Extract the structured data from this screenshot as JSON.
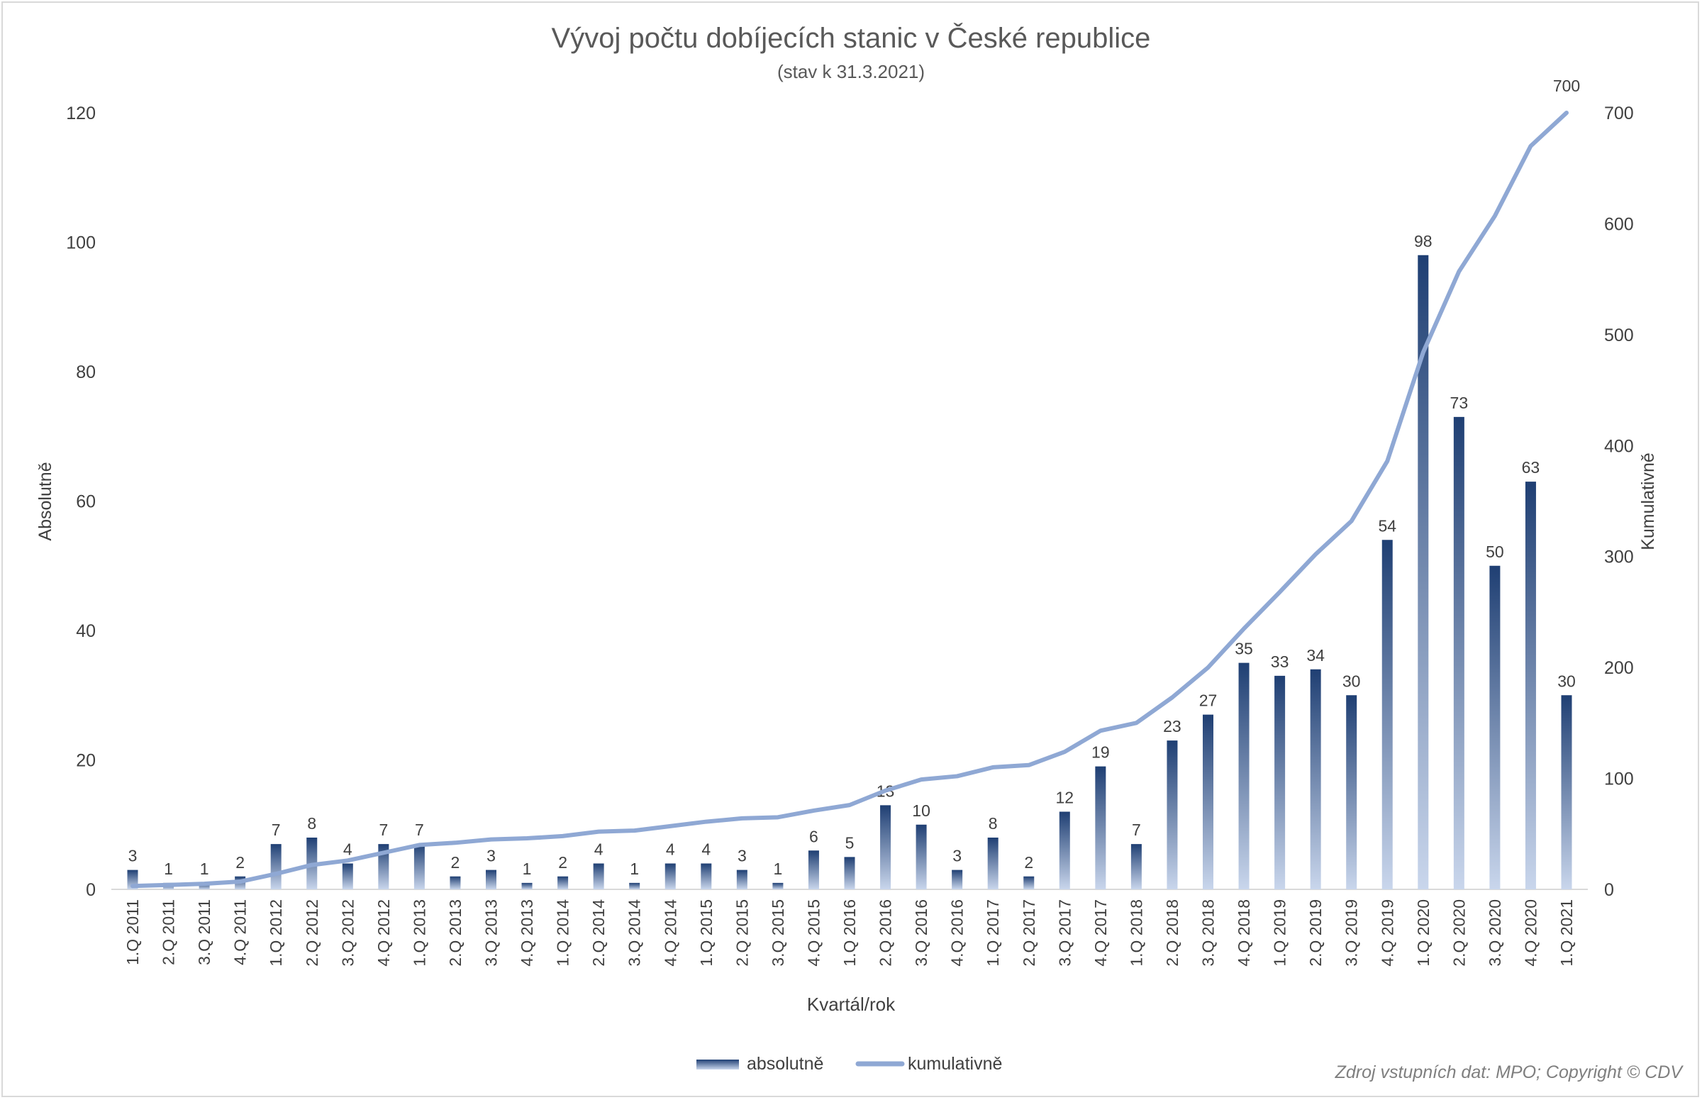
{
  "chart_data": {
    "type": "bar+line",
    "title": "Vývoj počtu dobíjecích stanic v České republice",
    "subtitle": "(stav k 31.3.2021)",
    "xlabel": "Kvartál/rok",
    "ylabel_left": "Absolutně",
    "ylabel_right": "Kumulativně",
    "ylim_left": [
      0,
      120
    ],
    "yticks_left": [
      0,
      20,
      40,
      60,
      80,
      100,
      120
    ],
    "ylim_right": [
      0,
      700
    ],
    "yticks_right": [
      0,
      100,
      200,
      300,
      400,
      500,
      600,
      700
    ],
    "grid": false,
    "legend_placement": "bottom",
    "categories": [
      "1.Q 2011",
      "2.Q 2011",
      "3.Q 2011",
      "4.Q 2011",
      "1.Q 2012",
      "2.Q 2012",
      "3.Q 2012",
      "4.Q 2012",
      "1.Q 2013",
      "2.Q 2013",
      "3.Q 2013",
      "4.Q 2013",
      "1.Q 2014",
      "2.Q 2014",
      "3.Q 2014",
      "4.Q 2014",
      "1.Q 2015",
      "2.Q 2015",
      "3.Q 2015",
      "4.Q 2015",
      "1.Q 2016",
      "2.Q 2016",
      "3.Q 2016",
      "4.Q 2016",
      "1.Q 2017",
      "2.Q 2017",
      "3.Q 2017",
      "4.Q 2017",
      "1.Q 2018",
      "2.Q 2018",
      "3.Q 2018",
      "4.Q 2018",
      "1.Q 2019",
      "2.Q 2019",
      "3.Q 2019",
      "4.Q 2019",
      "1.Q 2020",
      "2.Q 2020",
      "3.Q 2020",
      "4.Q 2020",
      "1.Q 2021"
    ],
    "series": [
      {
        "name": "absolutně",
        "type": "bar",
        "axis": "left",
        "color": "#1f3f73",
        "values": [
          3,
          1,
          1,
          2,
          7,
          8,
          4,
          7,
          7,
          2,
          3,
          1,
          2,
          4,
          1,
          4,
          4,
          3,
          1,
          6,
          5,
          13,
          10,
          3,
          8,
          2,
          12,
          19,
          7,
          23,
          27,
          35,
          33,
          34,
          30,
          54,
          98,
          73,
          50,
          63,
          30
        ]
      },
      {
        "name": "kumulativně",
        "type": "line",
        "axis": "right",
        "color": "#8fa8d4",
        "values": [
          3,
          4,
          5,
          7,
          14,
          22,
          26,
          33,
          40,
          42,
          45,
          46,
          48,
          52,
          53,
          57,
          61,
          64,
          65,
          71,
          76,
          89,
          99,
          102,
          110,
          112,
          124,
          143,
          150,
          173,
          200,
          235,
          268,
          302,
          332,
          386,
          484,
          557,
          607,
          670,
          700
        ],
        "last_label": "700"
      }
    ],
    "source_note": "Zdroj vstupních dat: MPO; Copyright © CDV"
  }
}
